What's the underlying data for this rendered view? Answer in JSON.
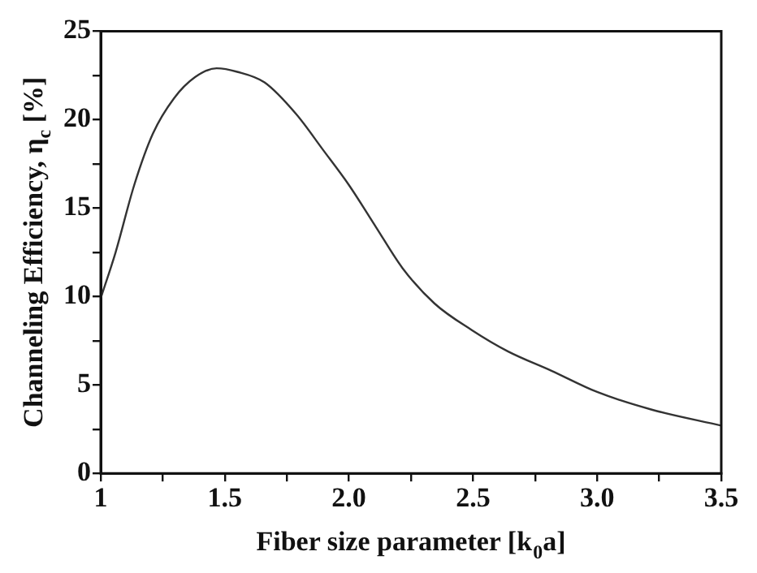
{
  "chart_data": {
    "type": "line",
    "xlabel": "Fiber size parameter [k$_{0}$a]",
    "ylabel": "Channeling Efficiency, η$_{c}$ [%]",
    "xlim": [
      1,
      3.5
    ],
    "xticks": [
      1,
      {
        "value": 1.25,
        "label": null
      },
      1.5,
      {
        "value": 1.75,
        "label": null
      },
      {
        "value": 2,
        "label": "2.0"
      },
      {
        "value": 2.25,
        "label": null
      },
      2.5,
      {
        "value": 2.75,
        "label": null
      },
      {
        "value": 3,
        "label": "3.0"
      },
      {
        "value": 3.25,
        "label": null
      },
      3.5
    ],
    "ylim": [
      0,
      25
    ],
    "yticks": [
      0,
      {
        "value": 2.5,
        "label": null
      },
      5,
      {
        "value": 7.5,
        "label": null
      },
      10,
      {
        "value": 12.5,
        "label": null
      },
      15,
      {
        "value": 17.5,
        "label": null
      },
      20,
      {
        "value": 22.5,
        "label": null
      },
      25
    ],
    "grid": false,
    "legend": false,
    "marker": "none",
    "line_style": "solid",
    "series": [
      {
        "color": "#333333",
        "x": [
          1.0,
          1.06,
          1.135,
          1.21,
          1.295,
          1.38,
          1.467,
          1.55,
          1.66,
          1.788,
          1.895,
          2.0,
          2.11,
          2.216,
          2.345,
          2.495,
          2.64,
          2.816,
          3.0,
          3.22,
          3.5
        ],
        "values": [
          9.9,
          12.5,
          16.3,
          19.2,
          21.2,
          22.4,
          22.9,
          22.7,
          22.1,
          20.3,
          18.3,
          16.3,
          13.9,
          11.6,
          9.6,
          8.1,
          6.9,
          5.8,
          4.6,
          3.6,
          2.7
        ]
      }
    ]
  }
}
